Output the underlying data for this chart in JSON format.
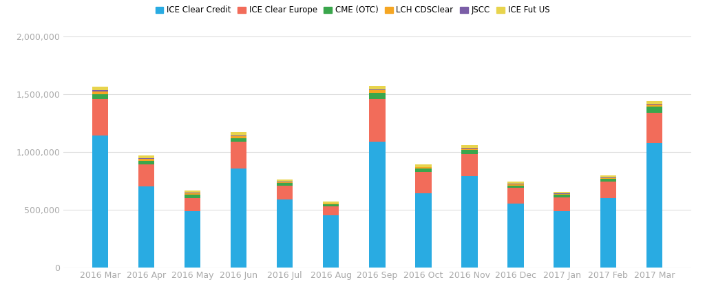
{
  "categories": [
    "2016 Mar",
    "2016 Apr",
    "2016 May",
    "2016 Jun",
    "2016 Jul",
    "2016 Aug",
    "2016 Sep",
    "2016 Oct",
    "2016 Nov",
    "2016 Dec",
    "2017 Jan",
    "2017 Feb",
    "2017 Mar"
  ],
  "series": {
    "ICE Clear Credit": [
      1140000,
      700000,
      490000,
      860000,
      590000,
      450000,
      1090000,
      645000,
      790000,
      555000,
      490000,
      600000,
      1075000
    ],
    "ICE Clear Europe": [
      320000,
      190000,
      110000,
      230000,
      120000,
      80000,
      370000,
      185000,
      195000,
      135000,
      115000,
      145000,
      265000
    ],
    "CME (OTC)": [
      40000,
      35000,
      30000,
      30000,
      20000,
      15000,
      55000,
      25000,
      35000,
      20000,
      25000,
      20000,
      50000
    ],
    "LCH CDSClear": [
      25000,
      15000,
      12000,
      18000,
      10000,
      8000,
      18000,
      12000,
      12000,
      10000,
      8000,
      10000,
      18000
    ],
    "JSCC": [
      8000,
      5000,
      4000,
      6000,
      3000,
      3000,
      6000,
      4000,
      5000,
      4000,
      3000,
      4000,
      6000
    ],
    "ICE Fut US": [
      35000,
      25000,
      20000,
      28000,
      18000,
      15000,
      30000,
      22000,
      22000,
      18000,
      15000,
      18000,
      28000
    ]
  },
  "colors": {
    "ICE Clear Credit": "#29ABE2",
    "ICE Clear Europe": "#F26C5A",
    "CME (OTC)": "#3AA64C",
    "LCH CDSClear": "#F5A623",
    "JSCC": "#7B5EA7",
    "ICE Fut US": "#E8D44D"
  },
  "ylim": [
    0,
    2000000
  ],
  "yticks": [
    0,
    500000,
    1000000,
    1500000,
    2000000
  ],
  "ytick_labels": [
    "0",
    "500,000",
    "1,000,000",
    "1,500,000",
    "2,000,000"
  ],
  "background_color": "#ffffff",
  "grid_color": "#dddddd",
  "bar_width": 0.35
}
